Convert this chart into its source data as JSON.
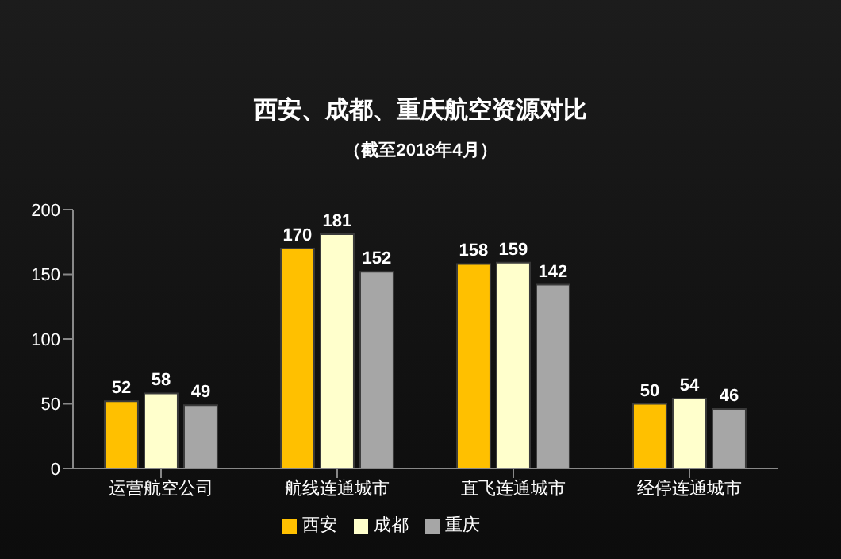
{
  "chart_data": {
    "type": "bar",
    "title": "西安、成都、重庆航空资源对比",
    "subtitle": "（截至2018年4月）",
    "categories": [
      "运营航空公司",
      "航线连通城市",
      "直飞连通城市",
      "经停连通城市"
    ],
    "series": [
      {
        "name": "西安",
        "color": "#ffc000",
        "values": [
          52,
          170,
          158,
          50
        ]
      },
      {
        "name": "成都",
        "color": "#ffffcc",
        "values": [
          58,
          181,
          159,
          54
        ]
      },
      {
        "name": "重庆",
        "color": "#a6a6a6",
        "values": [
          49,
          152,
          142,
          46
        ]
      }
    ],
    "ylim": [
      0,
      200
    ],
    "yticks": [
      0,
      50,
      100,
      150,
      200
    ],
    "grid": false,
    "legend": "bottom",
    "data_labels": true
  }
}
